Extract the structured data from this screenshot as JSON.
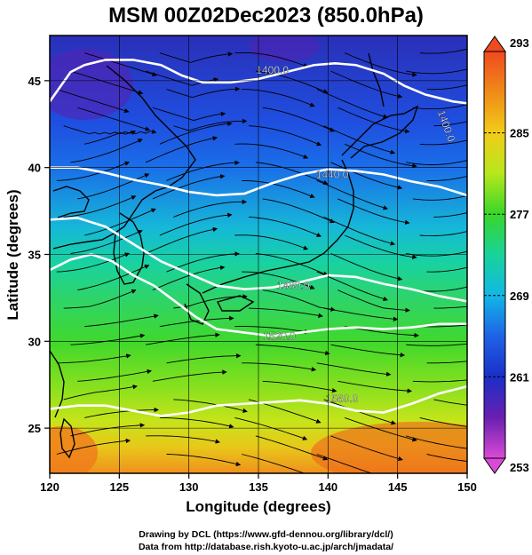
{
  "page": {
    "title": "MSM 00Z02Dec2023 (850.0hPa)",
    "credit_line1": "Drawing by DCL (https://www.gfd-dennou.org/library/dcl/)",
    "credit_line2": "Data from http://database.rish.kyoto-u.ac.jp/arch/jmadata/"
  },
  "chart_data": {
    "type": "heatmap",
    "title": "MSM 00Z02Dec2023 (850.0hPa)",
    "xlabel": "Longitude (degrees)",
    "ylabel": "Latitude  (degrees)",
    "xlim": [
      120,
      150
    ],
    "ylim": [
      22.4,
      47.6
    ],
    "xticks": [
      120,
      125,
      130,
      135,
      140,
      145,
      150
    ],
    "yticks": [
      25,
      30,
      35,
      40,
      45
    ],
    "grid": true,
    "colorbar": {
      "min": 253,
      "max": 293,
      "ticks": [
        253,
        261,
        269,
        277,
        285,
        293
      ],
      "colors": [
        "#d94bd6",
        "#6a1fb0",
        "#1a2fc8",
        "#1f62e6",
        "#12b7e6",
        "#18d39a",
        "#38d62a",
        "#b6e71c",
        "#f2cc18",
        "#f08a18",
        "#f04a20"
      ]
    },
    "contour_labels": [
      "1400.0",
      "1400.0",
      "1440.0",
      "1480.0",
      "1520.0",
      "1560.0"
    ],
    "contours": [
      {
        "label": "1400.0",
        "points": [
          [
            120,
            43.8
          ],
          [
            121.5,
            45.5
          ],
          [
            122.5,
            45.9
          ],
          [
            124,
            46.2
          ],
          [
            126,
            46.2
          ],
          [
            128,
            45.9
          ],
          [
            129.5,
            45.3
          ],
          [
            131,
            44.9
          ],
          [
            133,
            44.9
          ],
          [
            135,
            45.1
          ],
          [
            137,
            45.5
          ],
          [
            139,
            45.9
          ],
          [
            140.5,
            46.0
          ],
          [
            142,
            45.9
          ],
          [
            144,
            45.4
          ],
          [
            145.5,
            44.7
          ],
          [
            147,
            44.2
          ],
          [
            149,
            43.8
          ],
          [
            150,
            43.7
          ]
        ]
      },
      {
        "label": "1440.0",
        "points": [
          [
            120,
            40.0
          ],
          [
            122,
            40.0
          ],
          [
            124,
            39.7
          ],
          [
            126,
            39.3
          ],
          [
            128,
            39.0
          ],
          [
            130,
            38.6
          ],
          [
            132,
            38.4
          ],
          [
            134,
            38.5
          ],
          [
            136,
            39.1
          ],
          [
            138,
            39.6
          ],
          [
            140,
            39.9
          ],
          [
            142,
            39.8
          ],
          [
            144,
            39.6
          ],
          [
            146,
            39.2
          ],
          [
            148,
            38.9
          ],
          [
            150,
            38.4
          ]
        ]
      },
      {
        "label": "1480.0",
        "points": [
          [
            120,
            37.0
          ],
          [
            122,
            37.1
          ],
          [
            124,
            36.6
          ],
          [
            126,
            35.6
          ],
          [
            128,
            34.6
          ],
          [
            130,
            33.9
          ],
          [
            132,
            33.2
          ],
          [
            134,
            33.0
          ],
          [
            136,
            33.1
          ],
          [
            138,
            33.4
          ],
          [
            140,
            33.8
          ],
          [
            142,
            33.7
          ],
          [
            144,
            33.3
          ],
          [
            146,
            33.0
          ],
          [
            148,
            32.6
          ],
          [
            150,
            32.3
          ]
        ]
      },
      {
        "label": "1520.0",
        "points": [
          [
            120,
            34.1
          ],
          [
            121.5,
            34.7
          ],
          [
            123,
            35.0
          ],
          [
            124.5,
            34.6
          ],
          [
            126,
            33.8
          ],
          [
            127.5,
            33.2
          ],
          [
            129,
            32.3
          ],
          [
            130.5,
            31.4
          ],
          [
            132,
            30.7
          ],
          [
            134,
            30.5
          ],
          [
            136,
            30.3
          ],
          [
            138,
            30.5
          ],
          [
            140,
            30.7
          ],
          [
            142,
            30.8
          ],
          [
            144,
            30.7
          ],
          [
            146,
            30.8
          ],
          [
            148,
            31.0
          ],
          [
            150,
            31.0
          ]
        ]
      },
      {
        "label": "1560.0",
        "points": [
          [
            120,
            26.1
          ],
          [
            122,
            26.3
          ],
          [
            124,
            26.3
          ],
          [
            126,
            26.0
          ],
          [
            128,
            25.7
          ],
          [
            130,
            25.9
          ],
          [
            132,
            26.3
          ],
          [
            134,
            26.4
          ],
          [
            136,
            26.5
          ],
          [
            138,
            26.6
          ],
          [
            140,
            26.4
          ],
          [
            142,
            26.0
          ],
          [
            144,
            25.9
          ],
          [
            146,
            26.4
          ],
          [
            148,
            27.0
          ],
          [
            150,
            27.4
          ]
        ]
      }
    ]
  }
}
